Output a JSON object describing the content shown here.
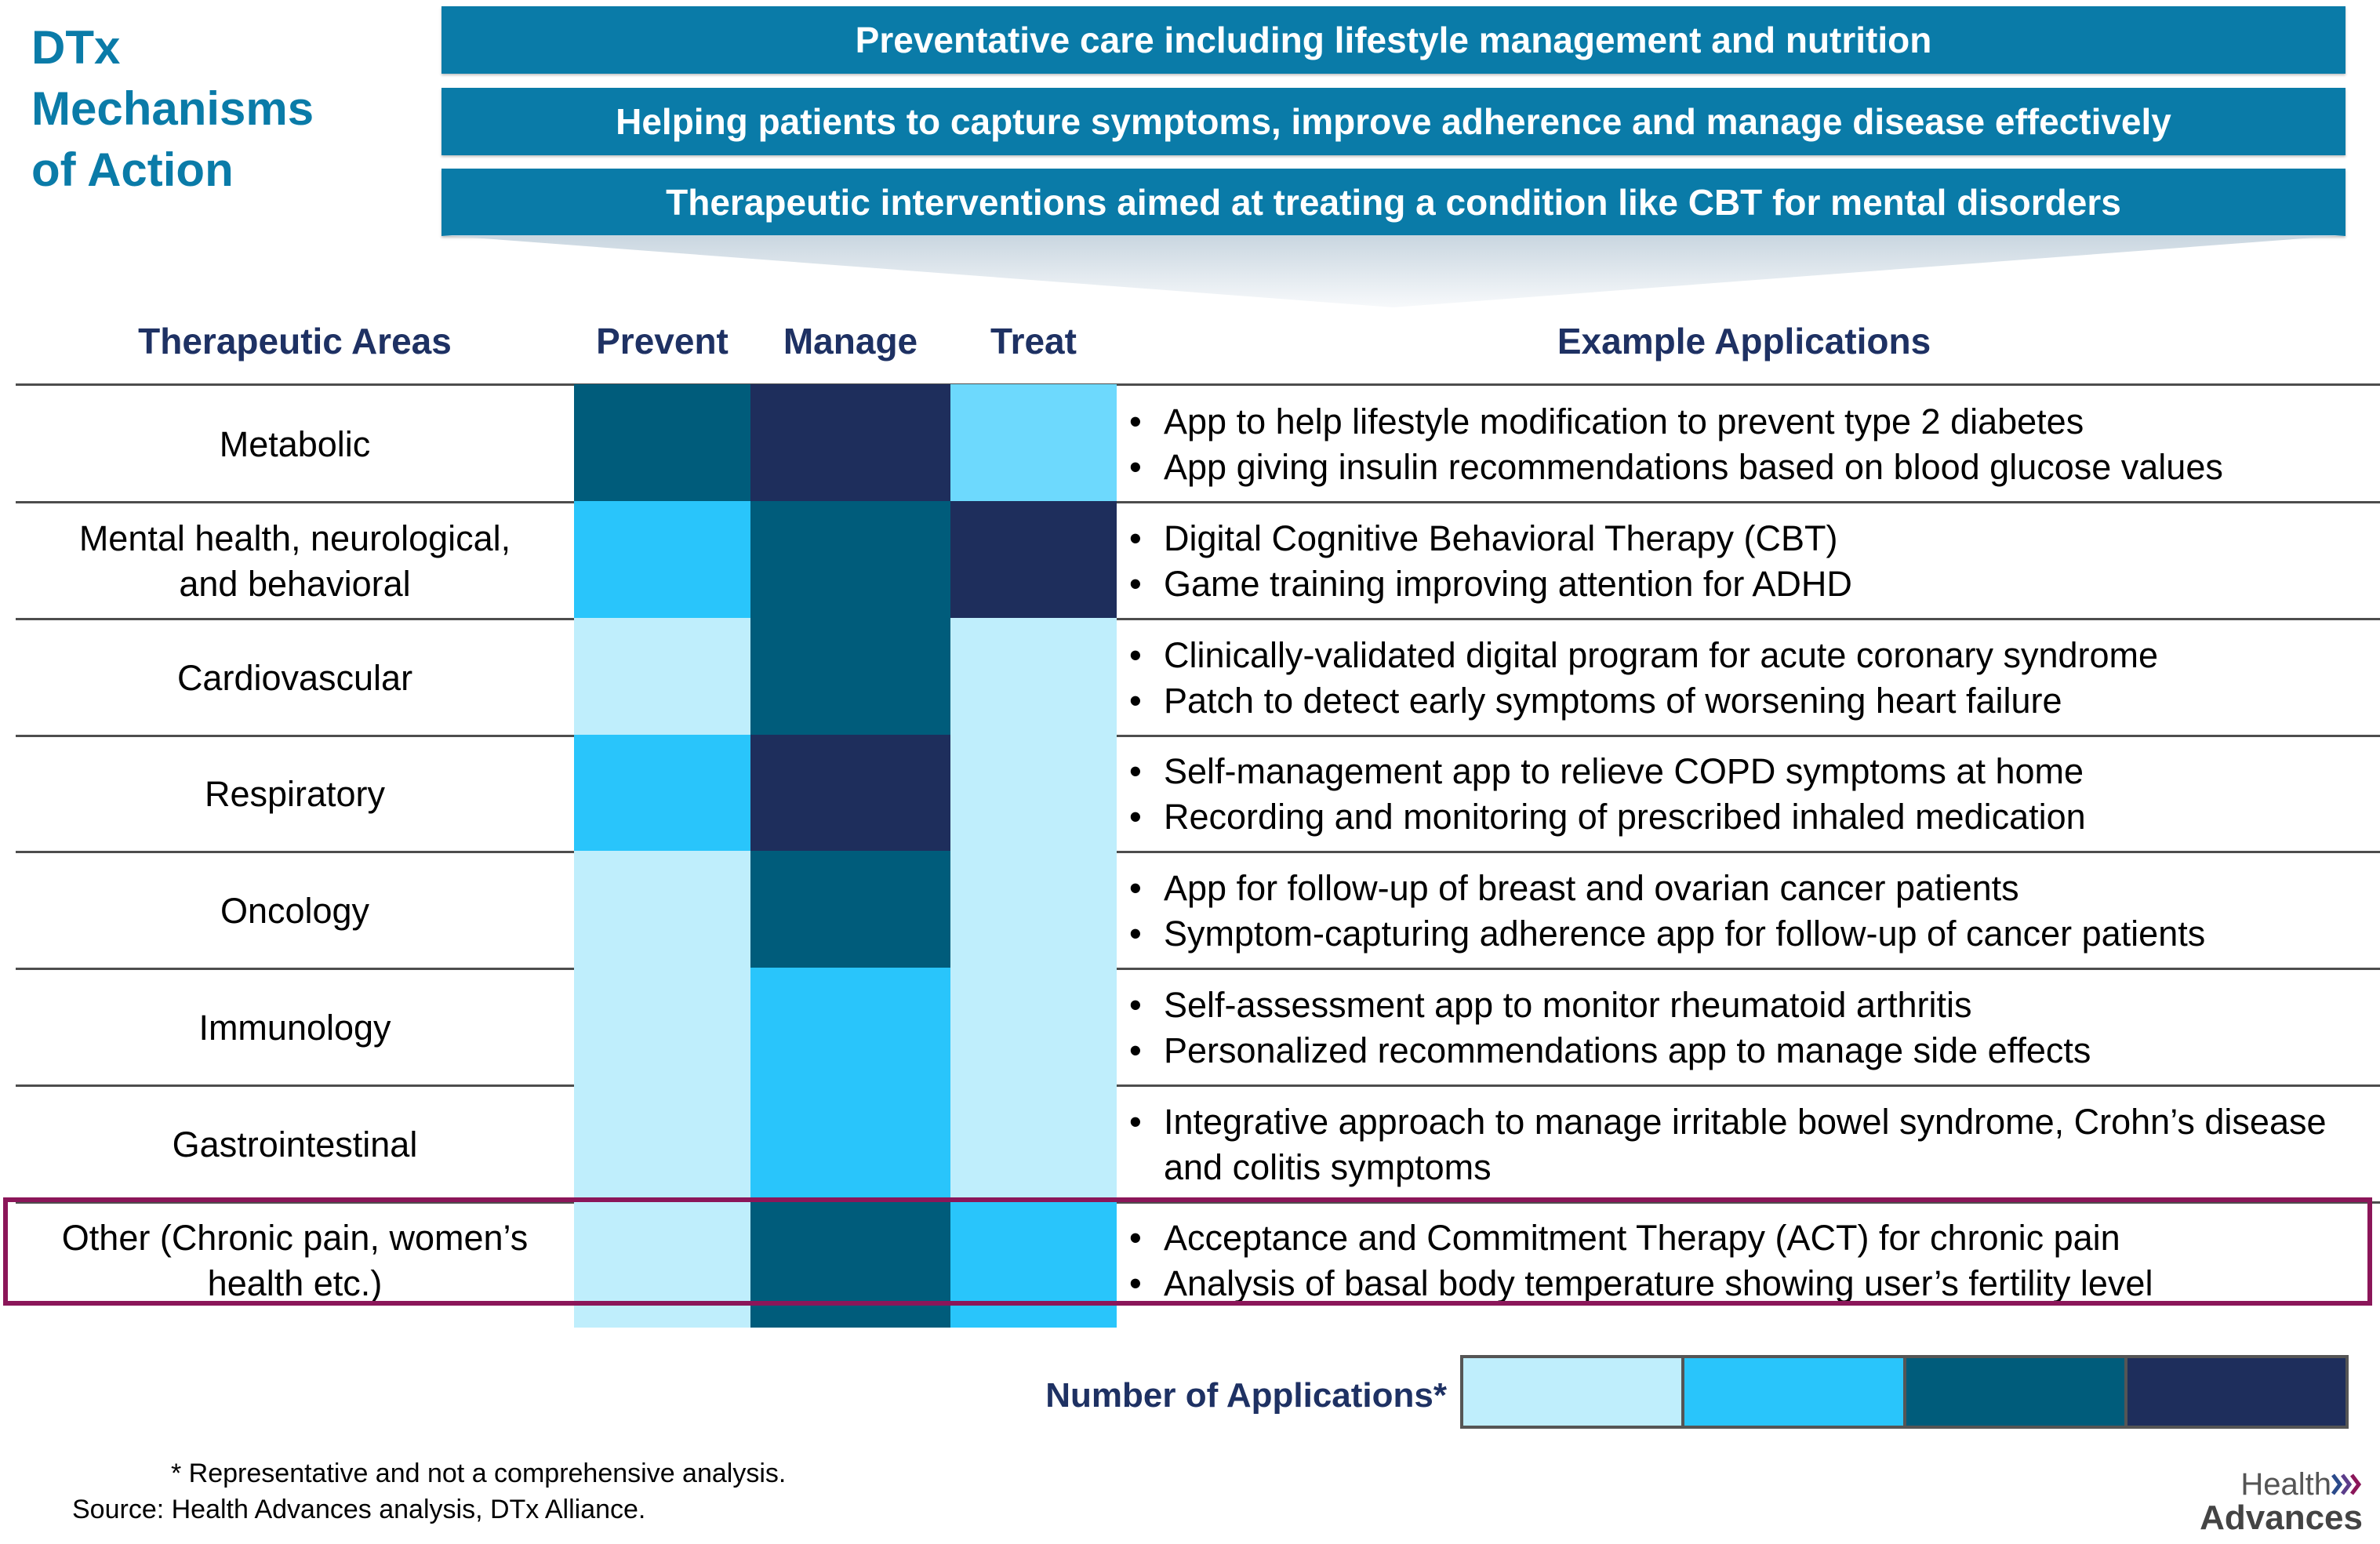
{
  "title": [
    "DTx",
    "Mechanisms",
    "of Action"
  ],
  "mechanisms": [
    "Preventative care including lifestyle management and nutrition",
    "Helping patients to capture symptoms, improve adherence and manage disease effectively",
    "Therapeutic interventions aimed at treating a condition like CBT for mental disorders"
  ],
  "headers": {
    "areas": "Therapeutic Areas",
    "prevent": "Prevent",
    "manage": "Manage",
    "treat": "Treat",
    "apps": "Example Applications"
  },
  "colors": {
    "level1": "#bfeefc",
    "level2": "#29c5fb",
    "level3": "#005c7b",
    "level4": "#1e2e5c",
    "treat_metabolic": "#6dd9fd",
    "mechanism_bar": "#0a7ba8",
    "highlight": "#8b1659"
  },
  "rows": [
    {
      "area": [
        "Metabolic"
      ],
      "levels": [
        3,
        4,
        1.5
      ],
      "apps": [
        "App to help lifestyle modification to prevent type 2 diabetes",
        "App giving insulin recommendations based on blood glucose values"
      ]
    },
    {
      "area": [
        "Mental health, neurological,",
        "and behavioral"
      ],
      "levels": [
        2,
        3,
        4
      ],
      "apps": [
        "Digital Cognitive Behavioral Therapy (CBT)",
        "Game training improving attention for ADHD"
      ]
    },
    {
      "area": [
        "Cardiovascular"
      ],
      "levels": [
        1,
        3,
        1
      ],
      "apps": [
        "Clinically-validated digital program for acute coronary syndrome",
        "Patch to detect early symptoms of worsening heart failure"
      ]
    },
    {
      "area": [
        "Respiratory"
      ],
      "levels": [
        2,
        4,
        1
      ],
      "apps": [
        "Self-management app to relieve COPD symptoms at home",
        "Recording and monitoring of prescribed inhaled medication"
      ]
    },
    {
      "area": [
        "Oncology"
      ],
      "levels": [
        1,
        3,
        1
      ],
      "apps": [
        "App for follow-up of breast and ovarian cancer patients",
        "Symptom-capturing adherence app for follow-up of cancer patients"
      ]
    },
    {
      "area": [
        "Immunology"
      ],
      "levels": [
        1,
        2,
        1
      ],
      "apps": [
        "Self-assessment app to monitor rheumatoid arthritis",
        "Personalized recommendations app to manage side effects"
      ]
    },
    {
      "area": [
        "Gastrointestinal"
      ],
      "levels": [
        1,
        2,
        1
      ],
      "apps": [
        "Integrative approach to manage irritable bowel syndrome, Crohn’s disease and colitis symptoms"
      ]
    },
    {
      "area": [
        "Other (Chronic pain, women’s",
        "health etc.)"
      ],
      "levels": [
        1,
        3,
        2
      ],
      "apps": [
        "Acceptance and Commitment Therapy (ACT) for chronic pain",
        "Analysis of basal body temperature showing user’s fertility level"
      ]
    }
  ],
  "legend": {
    "label": "Number of Applications*",
    "levels": [
      1,
      2,
      3,
      4
    ]
  },
  "footnotes": {
    "note": "* Representative and not a comprehensive analysis.",
    "source": "Source: Health Advances analysis, DTx Alliance."
  },
  "logo": {
    "line1": "Health",
    "line2": "Advances"
  }
}
